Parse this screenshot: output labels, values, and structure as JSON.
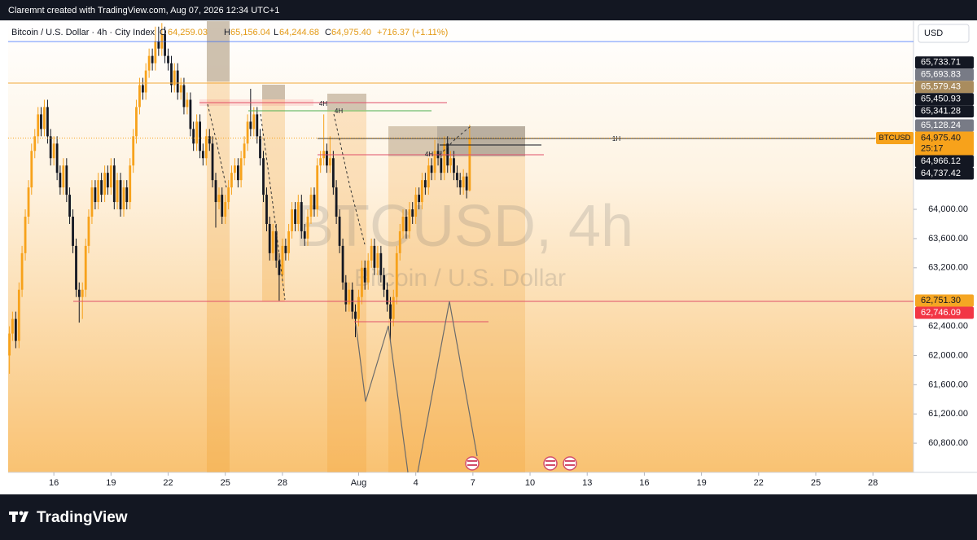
{
  "header": {
    "attribution": "Claremnt created with TradingView.com, Aug 07, 2026 12:34 UTC+1",
    "symbol": "Bitcoin / U.S. Dollar · 4h · City Index",
    "ohlc": [
      {
        "key": "O",
        "value": "64,259.03"
      },
      {
        "key": "H",
        "value": "65,156.04"
      },
      {
        "key": "L",
        "value": "64,244.68"
      },
      {
        "key": "C",
        "value": "64,975.40"
      }
    ],
    "change": "+716.37 (+1.11%)",
    "currency": "USD"
  },
  "watermark": {
    "symbol": "BTCUSD, 4h",
    "name": "Bitcoin / U.S. Dollar"
  },
  "chart_data": {
    "type": "candlestick",
    "up_color": "#f7a21b",
    "down_color": "#131722",
    "grid": false,
    "xlim": [
      13.6,
      61.13
    ],
    "ylim": [
      60400,
      66553
    ],
    "xticks": [
      16,
      19,
      22,
      25,
      28,
      {
        "value": 32,
        "label": "Aug"
      },
      {
        "value": 35,
        "label": "4"
      },
      {
        "value": 38,
        "label": "7"
      },
      {
        "value": 41,
        "label": "10"
      },
      {
        "value": 44,
        "label": "13"
      },
      {
        "value": 47,
        "label": "16"
      },
      {
        "value": 50,
        "label": "19"
      },
      {
        "value": 53,
        "label": "22"
      },
      {
        "value": 56,
        "label": "25"
      },
      {
        "value": 59,
        "label": "28"
      }
    ],
    "yticks": [
      {
        "value": 60800,
        "label": "60,800.00"
      },
      {
        "value": 61200,
        "label": "61,200.00"
      },
      {
        "value": 61600,
        "label": "61,600.00"
      },
      {
        "value": 62000,
        "label": "62,000.00"
      },
      {
        "value": 62400,
        "label": "62,400.00"
      },
      {
        "value": 63200,
        "label": "63,200.00"
      },
      {
        "value": 63600,
        "label": "63,600.00"
      },
      {
        "value": 64000,
        "label": "64,000.00"
      }
    ],
    "x": [
      13.67,
      13.83,
      14,
      14.17,
      14.33,
      14.5,
      14.67,
      14.83,
      15,
      15.17,
      15.33,
      15.5,
      15.67,
      15.83,
      16,
      16.17,
      16.33,
      16.5,
      16.67,
      16.83,
      17,
      17.17,
      17.33,
      17.5,
      17.67,
      17.83,
      18,
      18.17,
      18.33,
      18.5,
      18.67,
      18.83,
      19,
      19.17,
      19.33,
      19.5,
      19.67,
      19.83,
      20,
      20.17,
      20.33,
      20.5,
      20.67,
      20.83,
      21,
      21.17,
      21.33,
      21.5,
      21.67,
      21.83,
      22,
      22.17,
      22.33,
      22.5,
      22.67,
      22.83,
      23,
      23.17,
      23.33,
      23.5,
      23.67,
      23.83,
      24,
      24.17,
      24.33,
      24.5,
      24.67,
      24.83,
      25,
      25.17,
      25.33,
      25.5,
      25.67,
      25.83,
      26,
      26.17,
      26.33,
      26.5,
      26.67,
      26.83,
      27,
      27.17,
      27.33,
      27.5,
      27.67,
      27.83,
      28,
      28.17,
      28.33,
      28.5,
      28.67,
      28.83,
      29,
      29.17,
      29.33,
      29.5,
      29.67,
      29.83,
      30,
      30.17,
      30.33,
      30.5,
      30.67,
      30.83,
      31,
      31.17,
      31.33,
      31.5,
      31.67,
      31.83,
      32,
      32.17,
      32.33,
      32.5,
      32.67,
      32.83,
      33,
      33.17,
      33.33,
      33.5,
      33.67,
      33.83,
      34,
      34.17,
      34.33,
      34.5,
      34.67,
      34.83,
      35,
      35.17,
      35.33,
      35.5,
      35.67,
      35.83,
      36,
      36.17,
      36.33,
      36.5,
      36.67,
      36.83,
      37,
      37.17,
      37.33,
      37.5,
      37.67,
      37.83
    ],
    "ohlc": [
      [
        62000,
        62400,
        61750,
        62300
      ],
      [
        62300,
        62600,
        62200,
        62500
      ],
      [
        62500,
        62600,
        62100,
        62200
      ],
      [
        62200,
        63000,
        62100,
        62900
      ],
      [
        62900,
        63500,
        62800,
        63400
      ],
      [
        63400,
        64000,
        63300,
        63900
      ],
      [
        63900,
        64400,
        63800,
        64300
      ],
      [
        64300,
        64900,
        64200,
        64800
      ],
      [
        64800,
        65100,
        64700,
        65000
      ],
      [
        65000,
        65400,
        64900,
        65300
      ],
      [
        65300,
        65400,
        65000,
        65100
      ],
      [
        65100,
        65500,
        65000,
        65400
      ],
      [
        65400,
        65500,
        64900,
        65000
      ],
      [
        65000,
        65100,
        64600,
        64700
      ],
      [
        64700,
        65000,
        64600,
        64900
      ],
      [
        64900,
        65000,
        64400,
        64500
      ],
      [
        64500,
        64600,
        64200,
        64300
      ],
      [
        64300,
        64700,
        64200,
        64600
      ],
      [
        64600,
        64700,
        64100,
        64200
      ],
      [
        64200,
        64300,
        63800,
        63900
      ],
      [
        63900,
        64000,
        63400,
        63500
      ],
      [
        63500,
        63600,
        62800,
        62900
      ],
      [
        62900,
        63000,
        62450,
        62800
      ],
      [
        62800,
        63000,
        62500,
        62900
      ],
      [
        62900,
        63600,
        62800,
        63500
      ],
      [
        63500,
        64000,
        63400,
        63900
      ],
      [
        63900,
        64400,
        63800,
        64300
      ],
      [
        64300,
        64400,
        64000,
        64100
      ],
      [
        64100,
        64500,
        64000,
        64400
      ],
      [
        64400,
        64500,
        64100,
        64200
      ],
      [
        64200,
        64600,
        64100,
        64500
      ],
      [
        64500,
        64600,
        64200,
        64300
      ],
      [
        64300,
        64700,
        64200,
        64600
      ],
      [
        64600,
        64700,
        64000,
        64100
      ],
      [
        64100,
        64500,
        64000,
        64400
      ],
      [
        64400,
        64500,
        63900,
        64000
      ],
      [
        64000,
        64400,
        63900,
        64300
      ],
      [
        64300,
        64400,
        64000,
        64100
      ],
      [
        64100,
        64700,
        64000,
        64600
      ],
      [
        64600,
        65100,
        64500,
        65000
      ],
      [
        65000,
        65500,
        64900,
        65400
      ],
      [
        65400,
        65800,
        65300,
        65700
      ],
      [
        65700,
        65800,
        65500,
        65600
      ],
      [
        65600,
        66000,
        65500,
        65900
      ],
      [
        65900,
        66200,
        65800,
        66100
      ],
      [
        66100,
        66200,
        65900,
        66000
      ],
      [
        66000,
        66500,
        65900,
        66300
      ],
      [
        66300,
        66500,
        66100,
        66200
      ],
      [
        66200,
        66550,
        66100,
        66400
      ],
      [
        66400,
        66500,
        66000,
        66100
      ],
      [
        66100,
        66200,
        65900,
        66000
      ],
      [
        66000,
        66100,
        65600,
        65700
      ],
      [
        65700,
        66000,
        65600,
        65900
      ],
      [
        65900,
        66000,
        65500,
        65600
      ],
      [
        65600,
        65800,
        65500,
        65700
      ],
      [
        65700,
        65800,
        65300,
        65400
      ],
      [
        65400,
        65600,
        65300,
        65500
      ],
      [
        65500,
        65600,
        65000,
        65100
      ],
      [
        65100,
        65200,
        64800,
        64900
      ],
      [
        64900,
        65300,
        64800,
        65200
      ],
      [
        65200,
        65300,
        64700,
        64800
      ],
      [
        64800,
        64900,
        64600,
        64700
      ],
      [
        64700,
        65100,
        64600,
        65000
      ],
      [
        65000,
        65100,
        64800,
        64900
      ],
      [
        64900,
        65000,
        64300,
        64400
      ],
      [
        64400,
        64500,
        63750,
        64100
      ],
      [
        64100,
        64300,
        64000,
        64200
      ],
      [
        64200,
        64300,
        63800,
        63900
      ],
      [
        63900,
        64200,
        63800,
        64100
      ],
      [
        64100,
        64400,
        64000,
        64300
      ],
      [
        64300,
        64600,
        64200,
        64500
      ],
      [
        64500,
        64700,
        64400,
        64600
      ],
      [
        64600,
        64700,
        64300,
        64400
      ],
      [
        64400,
        64800,
        64300,
        64700
      ],
      [
        64700,
        65000,
        64600,
        64900
      ],
      [
        64900,
        65300,
        64800,
        65200
      ],
      [
        65200,
        65650,
        65000,
        65100
      ],
      [
        65100,
        65400,
        65000,
        65300
      ],
      [
        65300,
        65400,
        64900,
        65000
      ],
      [
        65000,
        65100,
        64600,
        64700
      ],
      [
        64700,
        64800,
        64100,
        64200
      ],
      [
        64200,
        64300,
        63700,
        63800
      ],
      [
        63800,
        63900,
        63300,
        63400
      ],
      [
        63400,
        63800,
        63300,
        63700
      ],
      [
        63700,
        63800,
        63200,
        63300
      ],
      [
        63300,
        63400,
        62750,
        63100
      ],
      [
        63100,
        63600,
        63000,
        63500
      ],
      [
        63500,
        63600,
        63300,
        63400
      ],
      [
        63400,
        63800,
        63300,
        63700
      ],
      [
        63700,
        64100,
        63600,
        64000
      ],
      [
        64000,
        64100,
        63700,
        63800
      ],
      [
        63800,
        64200,
        63700,
        64100
      ],
      [
        64100,
        64200,
        63600,
        63700
      ],
      [
        63700,
        63800,
        63500,
        63600
      ],
      [
        63600,
        64000,
        63500,
        63900
      ],
      [
        63900,
        64300,
        63800,
        64200
      ],
      [
        64200,
        64300,
        63900,
        64000
      ],
      [
        64000,
        64700,
        63900,
        64600
      ],
      [
        64600,
        64800,
        64500,
        64700
      ],
      [
        64700,
        65300,
        64600,
        64800
      ],
      [
        64800,
        64900,
        64500,
        64600
      ],
      [
        64600,
        65000,
        64500,
        64700
      ],
      [
        64700,
        64800,
        64200,
        64300
      ],
      [
        64300,
        64400,
        63800,
        63900
      ],
      [
        63900,
        64000,
        63400,
        63500
      ],
      [
        63500,
        63600,
        62900,
        63000
      ],
      [
        63000,
        63100,
        62600,
        62700
      ],
      [
        62700,
        63000,
        62600,
        62900
      ],
      [
        62900,
        63000,
        62500,
        62600
      ],
      [
        62600,
        62700,
        62250,
        62500
      ],
      [
        62500,
        62900,
        62400,
        62800
      ],
      [
        62800,
        63300,
        62700,
        63200
      ],
      [
        63200,
        63300,
        62900,
        63000
      ],
      [
        63000,
        63400,
        62900,
        63300
      ],
      [
        63300,
        63600,
        63200,
        63500
      ],
      [
        63500,
        63600,
        63100,
        63200
      ],
      [
        63200,
        63500,
        63100,
        63400
      ],
      [
        63400,
        63500,
        63000,
        63100
      ],
      [
        63100,
        63200,
        62800,
        62900
      ],
      [
        62900,
        63000,
        62600,
        62700
      ],
      [
        62700,
        62800,
        62200,
        62500
      ],
      [
        62500,
        62900,
        62400,
        62800
      ],
      [
        62800,
        63500,
        62700,
        63400
      ],
      [
        63400,
        63800,
        63300,
        63700
      ],
      [
        63700,
        64000,
        63600,
        63900
      ],
      [
        63900,
        64000,
        63600,
        63700
      ],
      [
        63700,
        64100,
        63600,
        64000
      ],
      [
        64000,
        64100,
        63800,
        63900
      ],
      [
        63900,
        64300,
        63800,
        64200
      ],
      [
        64200,
        64300,
        64000,
        64100
      ],
      [
        64100,
        64500,
        64000,
        64400
      ],
      [
        64400,
        64500,
        64200,
        64300
      ],
      [
        64300,
        64700,
        64200,
        64600
      ],
      [
        64600,
        64700,
        64400,
        64500
      ],
      [
        64500,
        64950,
        64400,
        64800
      ],
      [
        64800,
        64900,
        64600,
        64700
      ],
      [
        64700,
        64800,
        64400,
        64500
      ],
      [
        64500,
        65000,
        64400,
        64900
      ],
      [
        64900,
        65000,
        64500,
        64600
      ],
      [
        64600,
        64800,
        64500,
        64700
      ],
      [
        64700,
        64800,
        64400,
        64500
      ],
      [
        64500,
        64600,
        64300,
        64400
      ],
      [
        64400,
        64500,
        64200,
        64300
      ],
      [
        64300,
        64550,
        64200,
        64450
      ],
      [
        64450,
        64500,
        64150,
        64260
      ],
      [
        64259.03,
        65156.04,
        64244.68,
        64975.4
      ]
    ],
    "symbol_tag": "BTCUSD",
    "price_labels": [
      {
        "value": 65733.71,
        "label": "65,733.71",
        "color": "#131722",
        "text_color": "#ffffff"
      },
      {
        "value": 65693.83,
        "label": "65,693.83",
        "color": "#787b86",
        "text_color": "#ffffff"
      },
      {
        "value": 65579.43,
        "label": "65,579.43",
        "color": "#a98c5e",
        "text_color": "#ffffff"
      },
      {
        "value": 65450.93,
        "label": "65,450.93",
        "color": "#131722",
        "text_color": "#ffffff"
      },
      {
        "value": 65341.28,
        "label": "65,341.28",
        "color": "#131722",
        "text_color": "#ffffff"
      },
      {
        "value": 65128.24,
        "label": "65,128.24",
        "color": "#787b86",
        "text_color": "#ffffff"
      },
      {
        "value": 64975.4,
        "label": "64,975.40",
        "countdown": "25:17",
        "color": "#f7a21b",
        "text_color": "#131722"
      },
      {
        "value": 64966.12,
        "label": "64,966.12",
        "color": "#131722",
        "text_color": "#ffffff"
      },
      {
        "value": 64737.42,
        "label": "64,737.42",
        "color": "#131722",
        "text_color": "#ffffff"
      },
      {
        "value": 62751.3,
        "label": "62,751.30",
        "color": "#f5a623",
        "text_color": "#131722"
      },
      {
        "value": 62746.09,
        "label": "62,746.09",
        "color": "#f23645",
        "text_color": "#ffffff"
      }
    ]
  },
  "drawings": {
    "labels": [
      "4H",
      "4H",
      "4H",
      "1H"
    ]
  },
  "footer": {
    "brand": "TradingView"
  }
}
